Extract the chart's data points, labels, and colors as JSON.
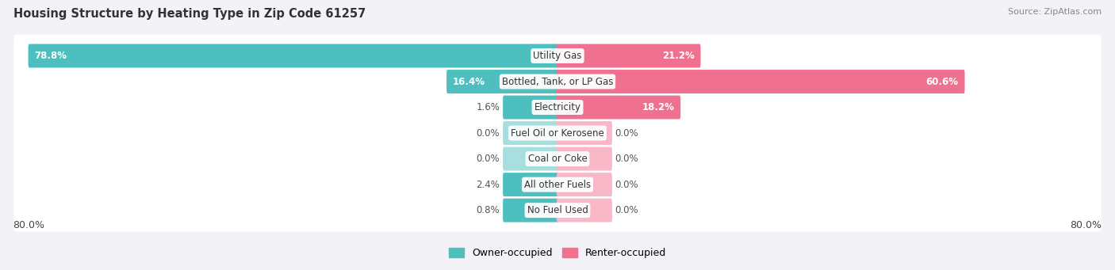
{
  "title": "Housing Structure by Heating Type in Zip Code 61257",
  "source": "Source: ZipAtlas.com",
  "categories": [
    "Utility Gas",
    "Bottled, Tank, or LP Gas",
    "Electricity",
    "Fuel Oil or Kerosene",
    "Coal or Coke",
    "All other Fuels",
    "No Fuel Used"
  ],
  "owner_values": [
    78.8,
    16.4,
    1.6,
    0.0,
    0.0,
    2.4,
    0.8
  ],
  "renter_values": [
    21.2,
    60.6,
    18.2,
    0.0,
    0.0,
    0.0,
    0.0
  ],
  "owner_color": "#4dbfbf",
  "renter_color": "#f07090",
  "owner_color_light": "#a8dede",
  "renter_color_light": "#f8b8c8",
  "background_color": "#f2f2f7",
  "row_bg_color": "#ffffff",
  "axis_max": 80.0,
  "title_fontsize": 10.5,
  "source_fontsize": 8,
  "label_fontsize": 8.5,
  "cat_fontsize": 8.5,
  "legend_fontsize": 9,
  "bar_height": 0.62,
  "min_bar_display": 8.0,
  "label_inside_threshold": 8.0
}
